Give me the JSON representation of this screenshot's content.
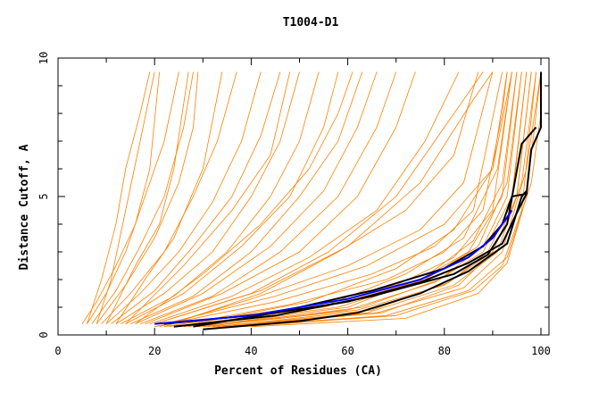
{
  "chart_data": {
    "type": "line",
    "title": "T1004-D1",
    "xlabel": "Percent of Residues (CA)",
    "ylabel": "Distance Cutoff, A",
    "xlim": [
      0,
      100
    ],
    "ylim": [
      0,
      10
    ],
    "xticks": [
      "0",
      "20",
      "40",
      "60",
      "80",
      "100"
    ],
    "yticks": [
      "0",
      "5",
      "10"
    ],
    "grid": false,
    "colors": {
      "models": "#ff8000",
      "highlight": "#000000",
      "reference": "#0000ff"
    },
    "series_models": [
      [
        [
          5,
          0.4
        ],
        [
          8,
          1.2
        ],
        [
          12,
          2.5
        ],
        [
          16,
          4
        ],
        [
          19,
          6
        ],
        [
          21,
          9.5
        ]
      ],
      [
        [
          6,
          0.4
        ],
        [
          10,
          1.5
        ],
        [
          14,
          3
        ],
        [
          18,
          5
        ],
        [
          22,
          7
        ],
        [
          25,
          9.5
        ]
      ],
      [
        [
          7,
          0.4
        ],
        [
          12,
          1.6
        ],
        [
          17,
          3.2
        ],
        [
          22,
          5
        ],
        [
          26,
          7.5
        ],
        [
          28,
          9.5
        ]
      ],
      [
        [
          8,
          0.4
        ],
        [
          14,
          1.8
        ],
        [
          20,
          3.5
        ],
        [
          25,
          5.5
        ],
        [
          28,
          7.5
        ],
        [
          29,
          9.5
        ]
      ],
      [
        [
          9,
          0.4
        ],
        [
          15,
          1.5
        ],
        [
          22,
          3
        ],
        [
          28,
          5
        ],
        [
          33,
          7
        ],
        [
          37,
          9.5
        ]
      ],
      [
        [
          10,
          0.4
        ],
        [
          17,
          1.5
        ],
        [
          25,
          3
        ],
        [
          32,
          4.8
        ],
        [
          38,
          7
        ],
        [
          42,
          9.5
        ]
      ],
      [
        [
          11,
          0.4
        ],
        [
          20,
          1.6
        ],
        [
          28,
          3.2
        ],
        [
          36,
          5
        ],
        [
          42,
          7.2
        ],
        [
          46,
          9.5
        ]
      ],
      [
        [
          12,
          0.4
        ],
        [
          22,
          1.5
        ],
        [
          32,
          3
        ],
        [
          40,
          5
        ],
        [
          46,
          7
        ],
        [
          50,
          9.5
        ]
      ],
      [
        [
          13,
          0.4
        ],
        [
          24,
          1.4
        ],
        [
          35,
          3
        ],
        [
          44,
          5
        ],
        [
          50,
          7
        ],
        [
          54,
          9.5
        ]
      ],
      [
        [
          14,
          0.4
        ],
        [
          26,
          1.5
        ],
        [
          38,
          3.2
        ],
        [
          48,
          5
        ],
        [
          55,
          7.5
        ],
        [
          58,
          9.5
        ]
      ],
      [
        [
          15,
          0.4
        ],
        [
          28,
          1.4
        ],
        [
          40,
          3
        ],
        [
          50,
          5
        ],
        [
          58,
          7
        ],
        [
          63,
          9.5
        ]
      ],
      [
        [
          16,
          0.4
        ],
        [
          30,
          1.5
        ],
        [
          44,
          3.2
        ],
        [
          55,
          5.2
        ],
        [
          62,
          7.5
        ],
        [
          66,
          9.5
        ]
      ],
      [
        [
          17,
          0.4
        ],
        [
          32,
          1.4
        ],
        [
          46,
          3
        ],
        [
          58,
          5
        ],
        [
          66,
          7.5
        ],
        [
          70,
          9.5
        ]
      ],
      [
        [
          18,
          0.4
        ],
        [
          34,
          1.5
        ],
        [
          50,
          3
        ],
        [
          62,
          5
        ],
        [
          70,
          7.5
        ],
        [
          74,
          9.5
        ]
      ],
      [
        [
          19,
          0.4
        ],
        [
          36,
          1.4
        ],
        [
          52,
          2.8
        ],
        [
          66,
          4.5
        ],
        [
          76,
          7
        ],
        [
          83,
          9.5
        ]
      ],
      [
        [
          20,
          0.4
        ],
        [
          40,
          1.5
        ],
        [
          56,
          3
        ],
        [
          70,
          5
        ],
        [
          80,
          7.5
        ],
        [
          88,
          9.5
        ]
      ],
      [
        [
          6,
          0.4
        ],
        [
          9,
          2
        ],
        [
          12,
          4
        ],
        [
          14,
          6
        ],
        [
          17,
          8
        ],
        [
          19,
          9.5
        ]
      ],
      [
        [
          8,
          0.4
        ],
        [
          11,
          2
        ],
        [
          14,
          4.5
        ],
        [
          17,
          7
        ],
        [
          20,
          9.5
        ]
      ],
      [
        [
          10,
          0.4
        ],
        [
          16,
          2.5
        ],
        [
          21,
          4
        ],
        [
          24,
          6
        ],
        [
          27,
          9.5
        ]
      ],
      [
        [
          12,
          0.4
        ],
        [
          18,
          2
        ],
        [
          24,
          3.5
        ],
        [
          30,
          6
        ],
        [
          34,
          9.5
        ]
      ],
      [
        [
          14,
          0.4
        ],
        [
          26,
          2.5
        ],
        [
          36,
          4.5
        ],
        [
          44,
          6.5
        ],
        [
          48,
          9.5
        ]
      ],
      [
        [
          16,
          0.4
        ],
        [
          30,
          2.2
        ],
        [
          42,
          4
        ],
        [
          52,
          6
        ],
        [
          58,
          8
        ],
        [
          61,
          9.5
        ]
      ],
      [
        [
          20,
          0.4
        ],
        [
          42,
          1.6
        ],
        [
          60,
          3.2
        ],
        [
          75,
          5.5
        ],
        [
          86,
          8.5
        ],
        [
          90,
          9.5
        ]
      ],
      [
        [
          22,
          0.4
        ],
        [
          45,
          1.4
        ],
        [
          64,
          2.5
        ],
        [
          80,
          4
        ],
        [
          90,
          6
        ],
        [
          94,
          9.5
        ]
      ],
      [
        [
          22,
          0.3
        ],
        [
          50,
          1
        ],
        [
          70,
          1.8
        ],
        [
          82,
          2.8
        ],
        [
          90,
          4.5
        ],
        [
          94,
          9.5
        ]
      ],
      [
        [
          24,
          0.3
        ],
        [
          55,
          1
        ],
        [
          74,
          1.9
        ],
        [
          85,
          3
        ],
        [
          92,
          5
        ],
        [
          95,
          9.5
        ]
      ],
      [
        [
          26,
          0.3
        ],
        [
          58,
          1
        ],
        [
          76,
          2
        ],
        [
          87,
          3.2
        ],
        [
          93,
          5.5
        ],
        [
          96,
          9.5
        ]
      ],
      [
        [
          28,
          0.3
        ],
        [
          60,
          0.9
        ],
        [
          78,
          1.9
        ],
        [
          88,
          3
        ],
        [
          94,
          5
        ],
        [
          97,
          9.5
        ]
      ],
      [
        [
          30,
          0.3
        ],
        [
          62,
          0.9
        ],
        [
          80,
          1.8
        ],
        [
          90,
          3
        ],
        [
          95,
          5
        ],
        [
          98,
          9.5
        ]
      ],
      [
        [
          32,
          0.3
        ],
        [
          64,
          0.8
        ],
        [
          82,
          1.8
        ],
        [
          91,
          3
        ],
        [
          96,
          5.5
        ],
        [
          99,
          9.5
        ]
      ],
      [
        [
          34,
          0.3
        ],
        [
          66,
          0.8
        ],
        [
          84,
          1.7
        ],
        [
          92,
          3
        ],
        [
          97,
          6
        ],
        [
          100,
          9.5
        ]
      ],
      [
        [
          36,
          0.3
        ],
        [
          68,
          0.7
        ],
        [
          85,
          1.6
        ],
        [
          93,
          2.8
        ],
        [
          98,
          5.5
        ],
        [
          100,
          8
        ]
      ],
      [
        [
          20,
          0.3
        ],
        [
          45,
          1.2
        ],
        [
          65,
          2.2
        ],
        [
          78,
          3.2
        ],
        [
          86,
          4.5
        ],
        [
          92,
          9.5
        ]
      ],
      [
        [
          21,
          0.3
        ],
        [
          40,
          1.3
        ],
        [
          60,
          2.5
        ],
        [
          75,
          3.8
        ],
        [
          84,
          5.5
        ],
        [
          90,
          9.5
        ]
      ],
      [
        [
          22,
          0.3
        ],
        [
          42,
          1.5
        ],
        [
          58,
          3
        ],
        [
          72,
          4.5
        ],
        [
          82,
          6.5
        ],
        [
          87,
          9.5
        ]
      ],
      [
        [
          25,
          0.3
        ],
        [
          52,
          1.2
        ],
        [
          70,
          2.4
        ],
        [
          82,
          3.8
        ],
        [
          90,
          6
        ],
        [
          93,
          9.5
        ]
      ],
      [
        [
          27,
          0.3
        ],
        [
          56,
          1.1
        ],
        [
          72,
          2.2
        ],
        [
          84,
          3.5
        ],
        [
          91,
          6
        ],
        [
          94,
          9.5
        ]
      ],
      [
        [
          29,
          0.3
        ],
        [
          60,
          1
        ],
        [
          76,
          2.1
        ],
        [
          86,
          3.4
        ],
        [
          92,
          5.5
        ],
        [
          95,
          9.5
        ]
      ],
      [
        [
          31,
          0.3
        ],
        [
          63,
          1
        ],
        [
          79,
          2
        ],
        [
          88,
          3.2
        ],
        [
          93,
          5
        ],
        [
          96,
          9.5
        ]
      ],
      [
        [
          33,
          0.3
        ],
        [
          65,
          0.9
        ],
        [
          81,
          1.9
        ],
        [
          89,
          3
        ],
        [
          94,
          4.8
        ],
        [
          97,
          9.5
        ]
      ],
      [
        [
          35,
          0.3
        ],
        [
          67,
          0.8
        ],
        [
          83,
          1.8
        ],
        [
          90,
          3
        ],
        [
          95,
          5
        ],
        [
          98,
          9.5
        ]
      ],
      [
        [
          23,
          0.3
        ],
        [
          48,
          1.1
        ],
        [
          68,
          2
        ],
        [
          80,
          3
        ],
        [
          88,
          4.5
        ],
        [
          92,
          8
        ],
        [
          93,
          9.5
        ]
      ],
      [
        [
          38,
          0.3
        ],
        [
          70,
          0.7
        ],
        [
          86,
          1.6
        ],
        [
          92,
          2.5
        ],
        [
          96,
          4.5
        ],
        [
          99,
          9.5
        ]
      ],
      [
        [
          40,
          0.3
        ],
        [
          72,
          0.6
        ],
        [
          87,
          1.5
        ],
        [
          93,
          2.6
        ],
        [
          97,
          5
        ],
        [
          100,
          9.5
        ]
      ]
    ],
    "series_highlight": [
      [
        [
          22,
          0.4
        ],
        [
          45,
          0.8
        ],
        [
          65,
          1.6
        ],
        [
          80,
          2.4
        ],
        [
          88,
          3.2
        ],
        [
          92,
          4
        ],
        [
          94,
          5
        ],
        [
          97,
          5.1
        ],
        [
          98,
          6.7
        ],
        [
          100,
          7.5
        ],
        [
          100,
          9.5
        ]
      ],
      [
        [
          24,
          0.3
        ],
        [
          45,
          0.7
        ],
        [
          65,
          1.4
        ],
        [
          82,
          2.2
        ],
        [
          89,
          2.9
        ],
        [
          93,
          4
        ],
        [
          96,
          6.9
        ],
        [
          99,
          7.5
        ]
      ],
      [
        [
          28,
          0.3
        ],
        [
          45,
          0.8
        ],
        [
          60,
          1.2
        ],
        [
          75,
          1.9
        ],
        [
          85,
          2.6
        ],
        [
          92,
          3.3
        ],
        [
          95,
          4.4
        ],
        [
          97,
          5.1
        ]
      ],
      [
        [
          30,
          0.2
        ],
        [
          50,
          0.5
        ],
        [
          62,
          0.8
        ],
        [
          75,
          1.5
        ],
        [
          85,
          2.3
        ],
        [
          93,
          3.3
        ],
        [
          96,
          5
        ],
        [
          97,
          5.2
        ]
      ]
    ],
    "series_reference": [
      [
        [
          20,
          0.4
        ],
        [
          40,
          0.7
        ],
        [
          60,
          1.3
        ],
        [
          75,
          2
        ],
        [
          85,
          2.8
        ],
        [
          90,
          3.5
        ],
        [
          94,
          4.5
        ]
      ]
    ]
  }
}
